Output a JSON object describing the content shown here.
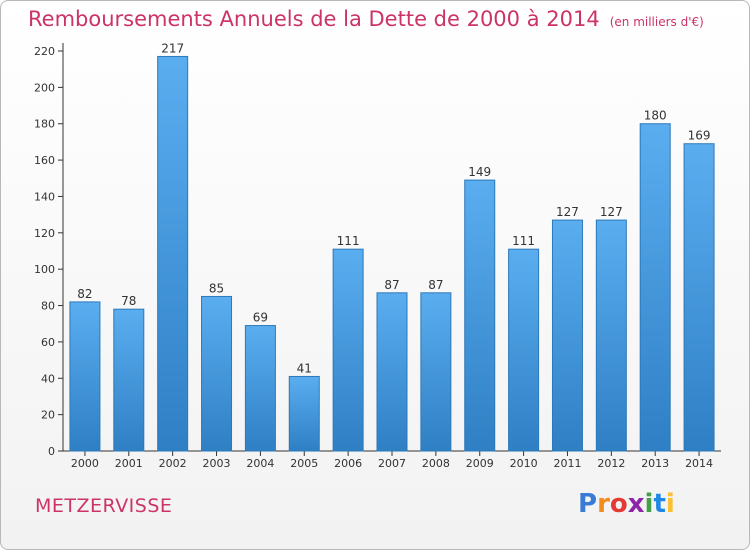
{
  "header": {
    "title": "Remboursements Annuels de la Dette de 2000 à 2014",
    "unit": "(en milliers d'€)"
  },
  "commune": "METZERVISSE",
  "logo": {
    "letters": [
      "P",
      "r",
      "o",
      "x",
      "i",
      "t",
      "i"
    ],
    "colors": [
      "#3a7bd5",
      "#f28c1e",
      "#e53935",
      "#8e24aa",
      "#43a047",
      "#1e88e5",
      "#fbc02d"
    ]
  },
  "chart_data": {
    "type": "bar",
    "title": "Remboursements Annuels de la Dette de 2000 à 2014",
    "xlabel": "",
    "ylabel": "",
    "categories": [
      "2000",
      "2001",
      "2002",
      "2003",
      "2004",
      "2005",
      "2006",
      "2007",
      "2008",
      "2009",
      "2010",
      "2011",
      "2012",
      "2013",
      "2014"
    ],
    "values": [
      82,
      78,
      217,
      85,
      69,
      41,
      111,
      87,
      87,
      149,
      111,
      127,
      127,
      180,
      169
    ],
    "ylim": [
      0,
      220
    ],
    "yticks": [
      0,
      20,
      40,
      60,
      80,
      100,
      120,
      140,
      160,
      180,
      200,
      220
    ],
    "grid": false,
    "bar_color": "#4a9fe3",
    "bar_edge_color": "#2d78b8"
  }
}
